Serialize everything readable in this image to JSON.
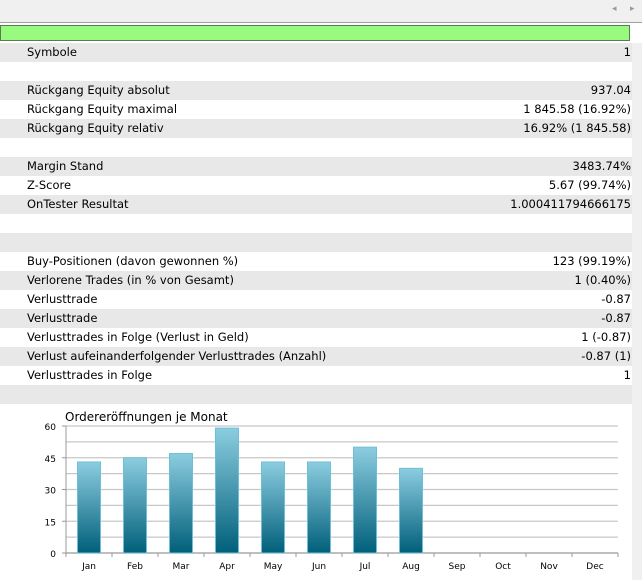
{
  "toolbar": {
    "left_arrow": "◂",
    "right_arrow": "▸"
  },
  "rows": [
    {
      "label": "Symbole",
      "value": "1"
    },
    {
      "label": "",
      "value": ""
    },
    {
      "label": "Rückgang Equity absolut",
      "value": "937.04"
    },
    {
      "label": "Rückgang Equity maximal",
      "value": "1 845.58 (16.92%)"
    },
    {
      "label": "Rückgang Equity relativ",
      "value": "16.92% (1 845.58)"
    },
    {
      "label": "",
      "value": ""
    },
    {
      "label": "Margin Stand",
      "value": "3483.74%"
    },
    {
      "label": "Z-Score",
      "value": "5.67 (99.74%)"
    },
    {
      "label": "OnTester Resultat",
      "value": "1.000411794666175"
    },
    {
      "label": "",
      "value": ""
    },
    {
      "label": "",
      "value": ""
    },
    {
      "label": "Buy-Positionen (davon gewonnen %)",
      "value": "123 (99.19%)"
    },
    {
      "label": "Verlorene Trades (in % von Gesamt)",
      "value": "1 (0.40%)"
    },
    {
      "label": "Verlusttrade",
      "value": "-0.87"
    },
    {
      "label": "Verlusttrade",
      "value": "-0.87"
    },
    {
      "label": "Verlusttrades in Folge (Verlust in Geld)",
      "value": "1 (-0.87)"
    },
    {
      "label": "Verlust aufeinanderfolgender Verlusttrades (Anzahl)",
      "value": "-0.87 (1)"
    },
    {
      "label": "Verlusttrades in Folge",
      "value": "1"
    },
    {
      "label": "",
      "value": ""
    }
  ],
  "colors": {
    "status_bar": "#98fb80",
    "bar_top": "#8ccde0",
    "bar_bottom": "#005f7a"
  },
  "chart_data": {
    "type": "bar",
    "title": "Ordereröffnungen je Monat",
    "categories": [
      "Jan",
      "Feb",
      "Mar",
      "Apr",
      "May",
      "Jun",
      "Jul",
      "Aug",
      "Sep",
      "Oct",
      "Nov",
      "Dec"
    ],
    "values": [
      43,
      45,
      47,
      59,
      43,
      43,
      50,
      40,
      null,
      null,
      null,
      null
    ],
    "yticks": [
      0,
      15,
      30,
      45,
      60
    ],
    "ylim": [
      0,
      60
    ],
    "grid": true
  }
}
